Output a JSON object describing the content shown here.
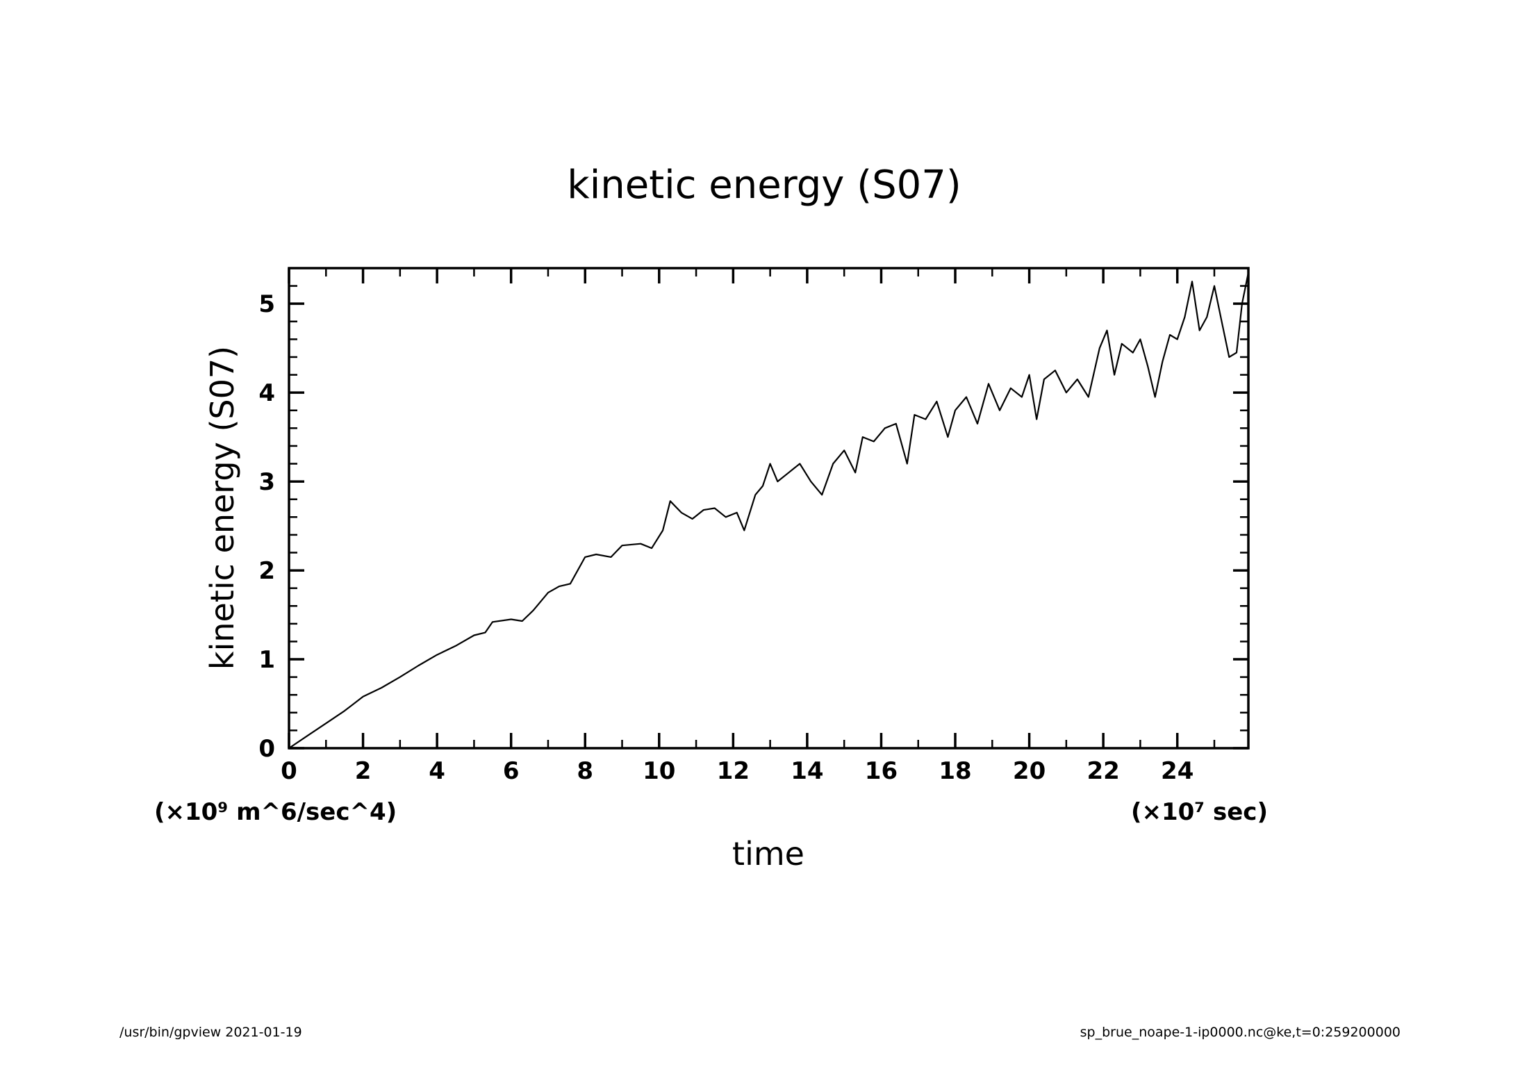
{
  "chart_data": {
    "type": "line",
    "title": "kinetic energy (S07)",
    "xlabel": "time",
    "ylabel": "kinetic energy (S07)",
    "x_unit_label": "(×10⁷ sec)",
    "y_unit_label": "(×10⁹ m^6/sec^4)",
    "xlim": [
      0,
      25.92
    ],
    "ylim": [
      0,
      5.4
    ],
    "xticks": [
      "0",
      "2",
      "4",
      "6",
      "8",
      "10",
      "12",
      "14",
      "16",
      "18",
      "20",
      "22",
      "24"
    ],
    "yticks": [
      "0",
      "1",
      "2",
      "3",
      "4",
      "5"
    ],
    "grid": false,
    "series": [
      {
        "name": "kinetic energy (S07)",
        "x": [
          0,
          0.5,
          1,
          1.5,
          2,
          2.5,
          3,
          3.5,
          4,
          4.5,
          5,
          5.3,
          5.5,
          6,
          6.3,
          6.6,
          7,
          7.3,
          7.6,
          8,
          8.3,
          8.7,
          9,
          9.5,
          9.8,
          10.1,
          10.3,
          10.6,
          10.9,
          11.2,
          11.5,
          11.8,
          12.1,
          12.3,
          12.6,
          12.8,
          13.0,
          13.2,
          13.5,
          13.8,
          14.1,
          14.4,
          14.7,
          15.0,
          15.3,
          15.5,
          15.8,
          16.1,
          16.4,
          16.7,
          16.9,
          17.2,
          17.5,
          17.8,
          18.0,
          18.3,
          18.6,
          18.9,
          19.2,
          19.5,
          19.8,
          20.0,
          20.2,
          20.4,
          20.7,
          21.0,
          21.3,
          21.6,
          21.9,
          22.1,
          22.3,
          22.5,
          22.8,
          23.0,
          23.2,
          23.4,
          23.6,
          23.8,
          24.0,
          24.2,
          24.4,
          24.6,
          24.8,
          25.0,
          25.2,
          25.4,
          25.6,
          25.75,
          25.92
        ],
        "y": [
          0,
          0.14,
          0.28,
          0.42,
          0.58,
          0.68,
          0.8,
          0.93,
          1.05,
          1.15,
          1.27,
          1.3,
          1.42,
          1.45,
          1.43,
          1.55,
          1.75,
          1.82,
          1.85,
          2.15,
          2.18,
          2.15,
          2.28,
          2.3,
          2.25,
          2.45,
          2.78,
          2.65,
          2.58,
          2.68,
          2.7,
          2.6,
          2.65,
          2.45,
          2.85,
          2.95,
          3.2,
          3.0,
          3.1,
          3.2,
          3.0,
          2.85,
          3.2,
          3.35,
          3.1,
          3.5,
          3.45,
          3.6,
          3.65,
          3.2,
          3.75,
          3.7,
          3.9,
          3.5,
          3.8,
          3.95,
          3.65,
          4.1,
          3.8,
          4.05,
          3.95,
          4.2,
          3.7,
          4.15,
          4.25,
          4.0,
          4.15,
          3.95,
          4.5,
          4.7,
          4.2,
          4.55,
          4.45,
          4.6,
          4.3,
          3.95,
          4.35,
          4.65,
          4.6,
          4.85,
          5.25,
          4.7,
          4.85,
          5.2,
          4.8,
          4.4,
          4.45,
          5.0,
          5.35
        ]
      }
    ]
  },
  "footer": {
    "left": "/usr/bin/gpview   2021-01-19",
    "right": "sp_brue_noape-1-ip0000.nc@ke,t=0:259200000"
  }
}
